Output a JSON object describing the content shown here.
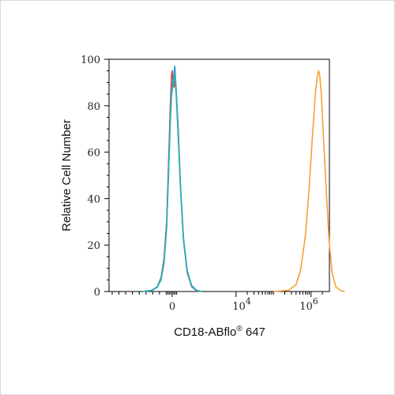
{
  "chart_data": {
    "type": "line",
    "title": "",
    "xlabel": "CD18-ABflo",
    "xlabel_sup": "®",
    "xlabel_suffix": " 647",
    "ylabel": "Relative Cell Number",
    "ylim": [
      0,
      100
    ],
    "xlim": [
      -1000,
      4.6
    ],
    "x_scale": "biexponential",
    "y_ticks": [
      {
        "value": 0,
        "label": "0"
      },
      {
        "value": 20,
        "label": "20"
      },
      {
        "value": 40,
        "label": "40"
      },
      {
        "value": 60,
        "label": "60"
      },
      {
        "value": 80,
        "label": "80"
      },
      {
        "value": 100,
        "label": "100"
      }
    ],
    "x_tick_labels": [
      {
        "label": "0",
        "sup": ""
      },
      {
        "label": "10",
        "sup": "4"
      },
      {
        "label": "10",
        "sup": "6"
      }
    ],
    "grid": false,
    "legend": "none",
    "series": [
      {
        "color": "#e8413c",
        "points": [
          [
            -0.8,
            0
          ],
          [
            -0.55,
            0.5
          ],
          [
            -0.4,
            2
          ],
          [
            -0.3,
            6
          ],
          [
            -0.22,
            14
          ],
          [
            -0.15,
            30
          ],
          [
            -0.1,
            55
          ],
          [
            -0.05,
            80
          ],
          [
            -0.02,
            93
          ],
          [
            0,
            95
          ],
          [
            0.02,
            90
          ],
          [
            0.05,
            88
          ],
          [
            0.08,
            92
          ],
          [
            0.11,
            85
          ],
          [
            0.16,
            70
          ],
          [
            0.22,
            45
          ],
          [
            0.3,
            22
          ],
          [
            0.4,
            8
          ],
          [
            0.52,
            2
          ],
          [
            0.65,
            0.3
          ],
          [
            0.8,
            0
          ]
        ]
      },
      {
        "color": "#1a9fd6",
        "points": [
          [
            -0.8,
            0
          ],
          [
            -0.55,
            0.4
          ],
          [
            -0.4,
            1.8
          ],
          [
            -0.3,
            5
          ],
          [
            -0.22,
            12
          ],
          [
            -0.15,
            27
          ],
          [
            -0.1,
            50
          ],
          [
            -0.05,
            75
          ],
          [
            -0.02,
            86
          ],
          [
            0.01,
            90
          ],
          [
            0.04,
            93
          ],
          [
            0.07,
            97
          ],
          [
            0.1,
            88
          ],
          [
            0.15,
            72
          ],
          [
            0.22,
            46
          ],
          [
            0.3,
            23
          ],
          [
            0.4,
            9
          ],
          [
            0.52,
            2.5
          ],
          [
            0.65,
            0.5
          ],
          [
            0.8,
            0
          ]
        ]
      },
      {
        "color": "#2ab0b7",
        "points": [
          [
            -0.8,
            0
          ],
          [
            -0.55,
            0.5
          ],
          [
            -0.4,
            2
          ],
          [
            -0.3,
            5.5
          ],
          [
            -0.22,
            13
          ],
          [
            -0.15,
            28
          ],
          [
            -0.1,
            51
          ],
          [
            -0.05,
            73
          ],
          [
            -0.02,
            84
          ],
          [
            0.01,
            88
          ],
          [
            0.04,
            91
          ],
          [
            0.07,
            94
          ],
          [
            0.1,
            86
          ],
          [
            0.15,
            70
          ],
          [
            0.22,
            45
          ],
          [
            0.3,
            22
          ],
          [
            0.4,
            8.5
          ],
          [
            0.52,
            2.2
          ],
          [
            0.65,
            0.4
          ],
          [
            0.8,
            0
          ]
        ]
      },
      {
        "color": "#f5a034",
        "points": [
          [
            2.7,
            0
          ],
          [
            3.1,
            0.5
          ],
          [
            3.3,
            3
          ],
          [
            3.42,
            9
          ],
          [
            3.55,
            24
          ],
          [
            3.65,
            45
          ],
          [
            3.75,
            70
          ],
          [
            3.82,
            86
          ],
          [
            3.87,
            93
          ],
          [
            3.9,
            95
          ],
          [
            3.93,
            93
          ],
          [
            3.97,
            86
          ],
          [
            4.02,
            70
          ],
          [
            4.1,
            45
          ],
          [
            4.18,
            22
          ],
          [
            4.26,
            8
          ],
          [
            4.36,
            2
          ],
          [
            4.5,
            0.3
          ],
          [
            4.6,
            0
          ]
        ]
      }
    ]
  }
}
